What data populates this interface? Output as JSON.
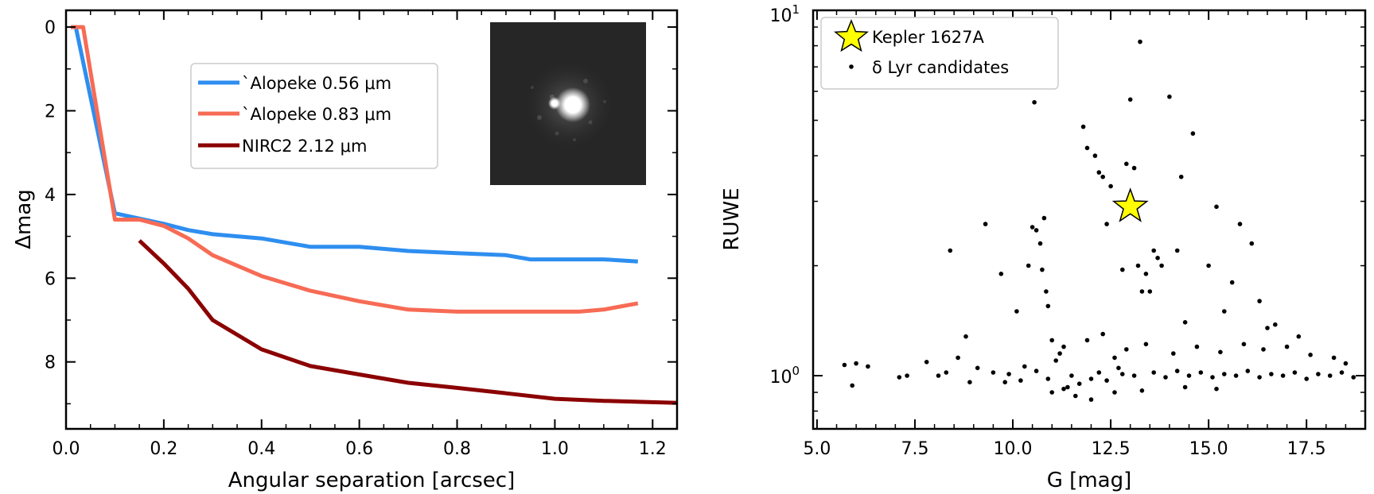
{
  "chart_data": [
    {
      "type": "line",
      "title": "",
      "xlabel": "Angular separation [arcsec]",
      "ylabel": "Δmag",
      "xlim": [
        0.0,
        1.25
      ],
      "ylim": [
        9.6,
        -0.4
      ],
      "y_inverted": true,
      "xticks": [
        0.0,
        0.2,
        0.4,
        0.6,
        0.8,
        1.0,
        1.2
      ],
      "xtick_labels": [
        "0.0",
        "0.2",
        "0.4",
        "0.6",
        "0.8",
        "1.0",
        "1.2"
      ],
      "yticks": [
        0,
        2,
        4,
        6,
        8
      ],
      "ytick_labels": [
        "0",
        "2",
        "4",
        "6",
        "8"
      ],
      "legend_position": "top-center",
      "inset": "grayscale speckle image of binary star",
      "series": [
        {
          "name": "`Alopeke 0.56 μm",
          "color": "#2e8ef0",
          "x": [
            0.01,
            0.02,
            0.1,
            0.2,
            0.25,
            0.3,
            0.4,
            0.5,
            0.55,
            0.6,
            0.7,
            0.8,
            0.9,
            0.95,
            1.0,
            1.05,
            1.1,
            1.17
          ],
          "y": [
            0.0,
            0.0,
            4.45,
            4.7,
            4.85,
            4.95,
            5.05,
            5.25,
            5.25,
            5.25,
            5.35,
            5.4,
            5.45,
            5.55,
            5.55,
            5.55,
            5.55,
            5.6
          ]
        },
        {
          "name": "`Alopeke 0.83 μm",
          "color": "#f76b55",
          "x": [
            0.01,
            0.035,
            0.1,
            0.15,
            0.2,
            0.25,
            0.3,
            0.4,
            0.5,
            0.6,
            0.7,
            0.8,
            0.9,
            1.0,
            1.05,
            1.1,
            1.17
          ],
          "y": [
            0.0,
            0.0,
            4.6,
            4.6,
            4.75,
            5.05,
            5.45,
            5.95,
            6.3,
            6.55,
            6.75,
            6.8,
            6.8,
            6.8,
            6.8,
            6.75,
            6.6
          ]
        },
        {
          "name": "NIRC2 2.12 μm",
          "color": "#8b0000",
          "x": [
            0.15,
            0.2,
            0.25,
            0.3,
            0.4,
            0.5,
            0.6,
            0.7,
            0.8,
            0.9,
            1.0,
            1.1,
            1.25
          ],
          "y": [
            5.1,
            5.65,
            6.25,
            7.0,
            7.7,
            8.1,
            8.3,
            8.5,
            8.62,
            8.75,
            8.88,
            8.93,
            8.98
          ]
        }
      ]
    },
    {
      "type": "scatter",
      "title": "",
      "xlabel": "G [mag]",
      "ylabel": "RUWE",
      "xlim": [
        4.9,
        19.0
      ],
      "ylim": [
        0.75,
        10
      ],
      "y_scale": "log",
      "xticks": [
        5.0,
        7.5,
        10.0,
        12.5,
        15.0,
        17.5
      ],
      "xtick_labels": [
        "5.0",
        "7.5",
        "10.0",
        "12.5",
        "15.0",
        "17.5"
      ],
      "ytick_labels": [
        "10⁰",
        "10¹"
      ],
      "legend_position": "top-left",
      "star": {
        "name": "Kepler 1627A",
        "x": 13.0,
        "y": 2.9,
        "color": "#ffff00"
      },
      "points_name": "δ Lyr candidates",
      "points": [
        [
          5.7,
          1.07
        ],
        [
          6.0,
          1.08
        ],
        [
          6.3,
          1.06
        ],
        [
          5.9,
          0.94
        ],
        [
          7.1,
          0.99
        ],
        [
          7.3,
          1.0
        ],
        [
          7.8,
          1.09
        ],
        [
          8.1,
          1.0
        ],
        [
          8.3,
          1.02
        ],
        [
          8.6,
          1.12
        ],
        [
          8.8,
          1.28
        ],
        [
          8.9,
          0.96
        ],
        [
          9.1,
          1.05
        ],
        [
          9.3,
          2.6
        ],
        [
          8.4,
          2.2
        ],
        [
          9.7,
          1.9
        ],
        [
          9.9,
          1.01
        ],
        [
          10.1,
          1.5
        ],
        [
          10.3,
          1.06
        ],
        [
          10.4,
          2.0
        ],
        [
          10.5,
          2.55
        ],
        [
          10.6,
          2.5
        ],
        [
          10.55,
          5.6
        ],
        [
          10.7,
          2.3
        ],
        [
          10.8,
          2.7
        ],
        [
          10.75,
          1.95
        ],
        [
          10.85,
          1.7
        ],
        [
          10.9,
          1.55
        ],
        [
          11.0,
          1.25
        ],
        [
          11.2,
          1.15
        ],
        [
          11.3,
          1.2
        ],
        [
          11.1,
          1.1
        ],
        [
          11.4,
          0.93
        ],
        [
          11.6,
          0.88
        ],
        [
          11.8,
          4.8
        ],
        [
          11.9,
          4.2
        ],
        [
          12.1,
          4.0
        ],
        [
          12.2,
          3.6
        ],
        [
          12.3,
          3.5
        ],
        [
          12.4,
          2.6
        ],
        [
          12.5,
          3.3
        ],
        [
          12.6,
          1.12
        ],
        [
          12.7,
          1.05
        ],
        [
          12.8,
          1.95
        ],
        [
          12.9,
          3.8
        ],
        [
          13.0,
          5.7
        ],
        [
          13.1,
          3.7
        ],
        [
          13.2,
          2.0
        ],
        [
          13.25,
          8.2
        ],
        [
          13.3,
          1.7
        ],
        [
          13.4,
          1.9
        ],
        [
          13.5,
          1.7
        ],
        [
          13.6,
          2.2
        ],
        [
          13.7,
          2.1
        ],
        [
          13.8,
          2.0
        ],
        [
          14.0,
          5.8
        ],
        [
          14.3,
          3.5
        ],
        [
          14.6,
          4.6
        ],
        [
          14.2,
          2.2
        ],
        [
          14.4,
          1.4
        ],
        [
          15.0,
          2.0
        ],
        [
          15.2,
          2.9
        ],
        [
          15.4,
          1.5
        ],
        [
          15.6,
          1.8
        ],
        [
          15.8,
          2.6
        ],
        [
          16.1,
          2.3
        ],
        [
          16.3,
          1.6
        ],
        [
          16.7,
          1.38
        ],
        [
          16.5,
          1.35
        ],
        [
          17.3,
          1.28
        ],
        [
          11.5,
          1.0
        ],
        [
          11.7,
          0.95
        ],
        [
          12.0,
          0.98
        ],
        [
          12.2,
          1.02
        ],
        [
          12.4,
          0.97
        ],
        [
          12.8,
          1.01
        ],
        [
          13.1,
          1.0
        ],
        [
          13.6,
          1.02
        ],
        [
          13.9,
          0.99
        ],
        [
          14.2,
          1.03
        ],
        [
          14.5,
          1.0
        ],
        [
          14.8,
          1.02
        ],
        [
          15.1,
          0.99
        ],
        [
          15.4,
          1.01
        ],
        [
          15.7,
          1.0
        ],
        [
          16.0,
          1.03
        ],
        [
          16.3,
          0.99
        ],
        [
          16.6,
          1.01
        ],
        [
          16.9,
          1.0
        ],
        [
          17.2,
          1.02
        ],
        [
          17.5,
          0.98
        ],
        [
          17.8,
          1.01
        ],
        [
          18.1,
          1.0
        ],
        [
          18.4,
          1.02
        ],
        [
          18.7,
          0.99
        ],
        [
          10.2,
          0.97
        ],
        [
          10.6,
          1.03
        ],
        [
          10.9,
          0.98
        ],
        [
          9.5,
          1.02
        ],
        [
          9.8,
          0.96
        ],
        [
          11.9,
          1.25
        ],
        [
          12.3,
          1.3
        ],
        [
          12.9,
          1.18
        ],
        [
          13.4,
          1.22
        ],
        [
          14.1,
          1.15
        ],
        [
          14.7,
          1.2
        ],
        [
          15.3,
          1.16
        ],
        [
          15.9,
          1.22
        ],
        [
          16.4,
          1.18
        ],
        [
          17.0,
          1.2
        ],
        [
          17.6,
          1.14
        ],
        [
          18.2,
          1.12
        ],
        [
          18.5,
          1.08
        ],
        [
          12.0,
          0.86
        ],
        [
          12.6,
          0.9
        ],
        [
          11.3,
          0.92
        ],
        [
          11.0,
          0.9
        ],
        [
          13.3,
          0.91
        ],
        [
          14.4,
          0.93
        ],
        [
          15.2,
          0.92
        ]
      ]
    }
  ]
}
